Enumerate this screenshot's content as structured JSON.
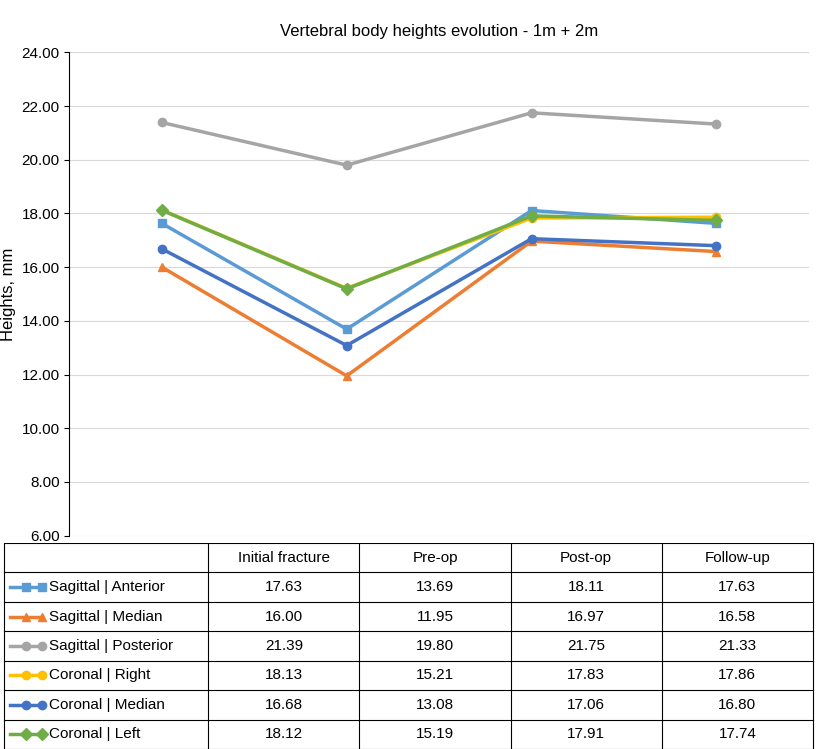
{
  "chart_data": {
    "type": "line",
    "title": "Vertebral body heights evolution - 1m + 2m",
    "y_label": "Heights, mm",
    "categories": [
      "Initial fracture",
      "Pre-op",
      "Post-op",
      "Follow-up"
    ],
    "series": [
      {
        "name": "Sagittal | Anterior",
        "color": "#5b9bd5",
        "marker": "square",
        "values": [
          17.63,
          13.69,
          18.11,
          17.63
        ],
        "value_labels": [
          "17.63",
          "13.69",
          "18.11",
          "17.63"
        ]
      },
      {
        "name": "Sagittal | Median",
        "color": "#ed7d31",
        "marker": "triangle",
        "values": [
          16.0,
          11.95,
          16.97,
          16.58
        ],
        "value_labels": [
          "16.00",
          "11.95",
          "16.97",
          "16.58"
        ]
      },
      {
        "name": "Sagittal | Posterior",
        "color": "#a5a5a5",
        "marker": "circle",
        "values": [
          21.39,
          19.8,
          21.75,
          21.33
        ],
        "value_labels": [
          "21.39",
          "19.80",
          "21.75",
          "21.33"
        ]
      },
      {
        "name": "Coronal | Right",
        "color": "#ffc000",
        "marker": "circle",
        "values": [
          18.13,
          15.21,
          17.83,
          17.86
        ],
        "value_labels": [
          "18.13",
          "15.21",
          "17.83",
          "17.86"
        ]
      },
      {
        "name": "Coronal | Median",
        "color": "#4472c4",
        "marker": "circle",
        "values": [
          16.68,
          13.08,
          17.06,
          16.8
        ],
        "value_labels": [
          "16.68",
          "13.08",
          "17.06",
          "16.80"
        ]
      },
      {
        "name": "Coronal | Left",
        "color": "#70ad47",
        "marker": "diamond",
        "values": [
          18.12,
          15.19,
          17.91,
          17.74
        ],
        "value_labels": [
          "18.12",
          "15.19",
          "17.91",
          "17.74"
        ]
      }
    ],
    "ylim": [
      6,
      24
    ],
    "yticks": [
      {
        "value": 6,
        "label": "6.00"
      },
      {
        "value": 8,
        "label": "8.00"
      },
      {
        "value": 10,
        "label": "10.00"
      },
      {
        "value": 12,
        "label": "12.00"
      },
      {
        "value": 14,
        "label": "14.00"
      },
      {
        "value": 16,
        "label": "16.00"
      },
      {
        "value": 18,
        "label": "18.00"
      },
      {
        "value": 20,
        "label": "20.00"
      },
      {
        "value": 22,
        "label": "22.00"
      },
      {
        "value": 24,
        "label": "24.00"
      }
    ],
    "grid": true,
    "tick_labels": "y"
  }
}
